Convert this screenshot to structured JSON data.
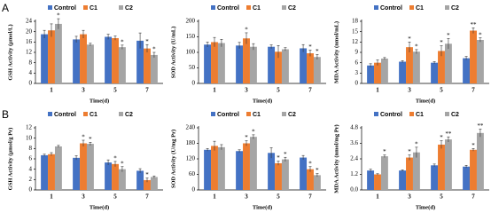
{
  "chart_data": [
    {
      "type": "bar",
      "panel_label": "A",
      "y_label": "GSH Activity (μmol/L)",
      "x_label": "Time(d)",
      "categories": [
        "1",
        "3",
        "5",
        "7"
      ],
      "ylim": [
        0,
        24
      ],
      "yticks": [
        0,
        4,
        8,
        12,
        16,
        20,
        24
      ],
      "series": [
        {
          "name": "Control",
          "color": "#4472c4",
          "values": [
            19,
            17,
            18,
            16.5
          ],
          "errors": [
            1.5,
            1.2,
            1,
            3
          ]
        },
        {
          "name": "C1",
          "color": "#ed7d31",
          "values": [
            20.5,
            19,
            17.5,
            13.5
          ],
          "errors": [
            2.5,
            1.5,
            0.8,
            1.5
          ],
          "significance": [
            null,
            null,
            null,
            "*"
          ]
        },
        {
          "name": "C2",
          "color": "#a5a5a5",
          "values": [
            23,
            15,
            14,
            11
          ],
          "errors": [
            2,
            0.5,
            0.8,
            1
          ],
          "significance": [
            "*",
            null,
            "*",
            "*"
          ]
        }
      ]
    },
    {
      "type": "bar",
      "y_label": "SOD Activity (U/mL)",
      "x_label": "Time(d)",
      "categories": [
        "1",
        "3",
        "5",
        "7"
      ],
      "ylim": [
        0,
        200
      ],
      "yticks": [
        0,
        50,
        100,
        150,
        200
      ],
      "series": [
        {
          "name": "Control",
          "color": "#4472c4",
          "values": [
            125,
            122,
            118,
            113
          ],
          "errors": [
            8,
            10,
            6,
            12
          ]
        },
        {
          "name": "C1",
          "color": "#ed7d31",
          "values": [
            133,
            145,
            102,
            97
          ],
          "errors": [
            15,
            18,
            20,
            10
          ],
          "significance": [
            null,
            "*",
            null,
            "*"
          ]
        },
        {
          "name": "C2",
          "color": "#a5a5a5",
          "values": [
            130,
            118,
            110,
            85
          ],
          "errors": [
            12,
            10,
            5,
            8
          ],
          "significance": [
            null,
            null,
            null,
            "*"
          ]
        }
      ]
    },
    {
      "type": "bar",
      "y_label": "MDA Activity (nmol/mL)",
      "x_label": "Time(d)",
      "categories": [
        "1",
        "3",
        "5",
        "7"
      ],
      "ylim": [
        0,
        18
      ],
      "yticks": [
        0,
        3,
        6,
        9,
        12,
        15,
        18
      ],
      "series": [
        {
          "name": "Control",
          "color": "#4472c4",
          "values": [
            5.2,
            6.3,
            6.0,
            7.3
          ],
          "errors": [
            0.5,
            0.3,
            0.3,
            0.5
          ]
        },
        {
          "name": "C1",
          "color": "#ed7d31",
          "values": [
            6.0,
            10.5,
            9.4,
            15.3
          ],
          "errors": [
            0.8,
            1.5,
            1.5,
            0.8
          ],
          "significance": [
            null,
            "*",
            "*",
            "**"
          ]
        },
        {
          "name": "C2",
          "color": "#a5a5a5",
          "values": [
            7.2,
            9.2,
            11.5,
            12.6
          ],
          "errors": [
            0.3,
            0.6,
            1.5,
            0.6
          ],
          "significance": [
            null,
            "*",
            "*",
            "*"
          ]
        }
      ]
    },
    {
      "type": "bar",
      "panel_label": "B",
      "y_label": "GSH Activity (μmol/g Pr)",
      "x_label": "Time(d)",
      "categories": [
        "1",
        "3",
        "5",
        "7"
      ],
      "ylim": [
        0,
        12
      ],
      "yticks": [
        0,
        2,
        4,
        6,
        8,
        10,
        12
      ],
      "series": [
        {
          "name": "Control",
          "color": "#4472c4",
          "values": [
            6.7,
            6.2,
            5.3,
            3.7
          ],
          "errors": [
            0.2,
            0.4,
            0.5,
            0.4
          ]
        },
        {
          "name": "C1",
          "color": "#ed7d31",
          "values": [
            6.9,
            9.0,
            5.0,
            1.9
          ],
          "errors": [
            0.3,
            0.6,
            0.5,
            0.4
          ],
          "significance": [
            null,
            "*",
            "*",
            "*"
          ]
        },
        {
          "name": "C2",
          "color": "#a5a5a5",
          "values": [
            8.4,
            8.9,
            4.0,
            2.5
          ],
          "errors": [
            0.2,
            0.3,
            0.5,
            0.2
          ],
          "significance": [
            null,
            "*",
            "*",
            null
          ]
        }
      ]
    },
    {
      "type": "bar",
      "y_label": "SOD Activity (U/mg Pr)",
      "x_label": "Time(d)",
      "categories": [
        "1",
        "3",
        "5",
        "7"
      ],
      "ylim": [
        0,
        240
      ],
      "yticks": [
        0,
        60,
        120,
        180,
        240
      ],
      "series": [
        {
          "name": "Control",
          "color": "#4472c4",
          "values": [
            155,
            150,
            143,
            125
          ],
          "errors": [
            5,
            5,
            20,
            8
          ]
        },
        {
          "name": "C1",
          "color": "#ed7d31",
          "values": [
            170,
            180,
            103,
            80
          ],
          "errors": [
            18,
            10,
            8,
            10
          ],
          "significance": [
            null,
            "*",
            "*",
            "*"
          ]
        },
        {
          "name": "C2",
          "color": "#a5a5a5",
          "values": [
            165,
            205,
            118,
            57
          ],
          "errors": [
            10,
            8,
            8,
            6
          ],
          "significance": [
            null,
            "*",
            "*",
            "*"
          ]
        }
      ]
    },
    {
      "type": "bar",
      "y_label": "MDA Activity (nmol/mg Pr)",
      "x_label": "Time(d)",
      "categories": [
        "1",
        "3",
        "5",
        "7"
      ],
      "ylim": [
        0,
        4.8
      ],
      "yticks": [
        {
          "value": 0,
          "label": "0.0"
        },
        1.2,
        2.4,
        3.6,
        {
          "value": 4.8,
          "label": "4.8"
        }
      ],
      "series": [
        {
          "name": "Control",
          "color": "#4472c4",
          "values": [
            1.5,
            1.5,
            1.9,
            1.8
          ],
          "errors": [
            0.1,
            0.05,
            0.1,
            0.1
          ]
        },
        {
          "name": "C1",
          "color": "#ed7d31",
          "values": [
            1.2,
            2.5,
            3.5,
            3.1
          ],
          "errors": [
            0.05,
            0.2,
            0.3,
            0.1
          ],
          "significance": [
            null,
            "*",
            "*",
            "*"
          ]
        },
        {
          "name": "C2",
          "color": "#a5a5a5",
          "values": [
            2.6,
            2.9,
            3.9,
            4.4
          ],
          "errors": [
            0.1,
            0.4,
            0.2,
            0.3
          ],
          "significance": [
            "*",
            "*",
            "**",
            "**"
          ]
        }
      ]
    }
  ]
}
